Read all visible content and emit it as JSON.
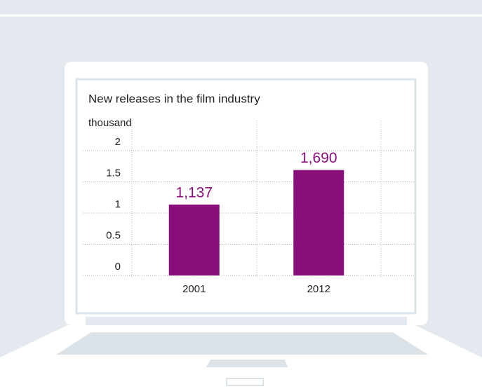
{
  "chart_data": {
    "type": "bar",
    "title": "New releases in the film industry",
    "y_label": "thousand",
    "categories": [
      "2001",
      "2012"
    ],
    "values": [
      1.137,
      1.69
    ],
    "value_labels": [
      "1,137",
      "1,690"
    ],
    "color": "#8b0f7a",
    "ylim": [
      0,
      2
    ],
    "yticks": [
      0,
      0.5,
      1,
      1.5,
      2
    ],
    "grid": true
  }
}
